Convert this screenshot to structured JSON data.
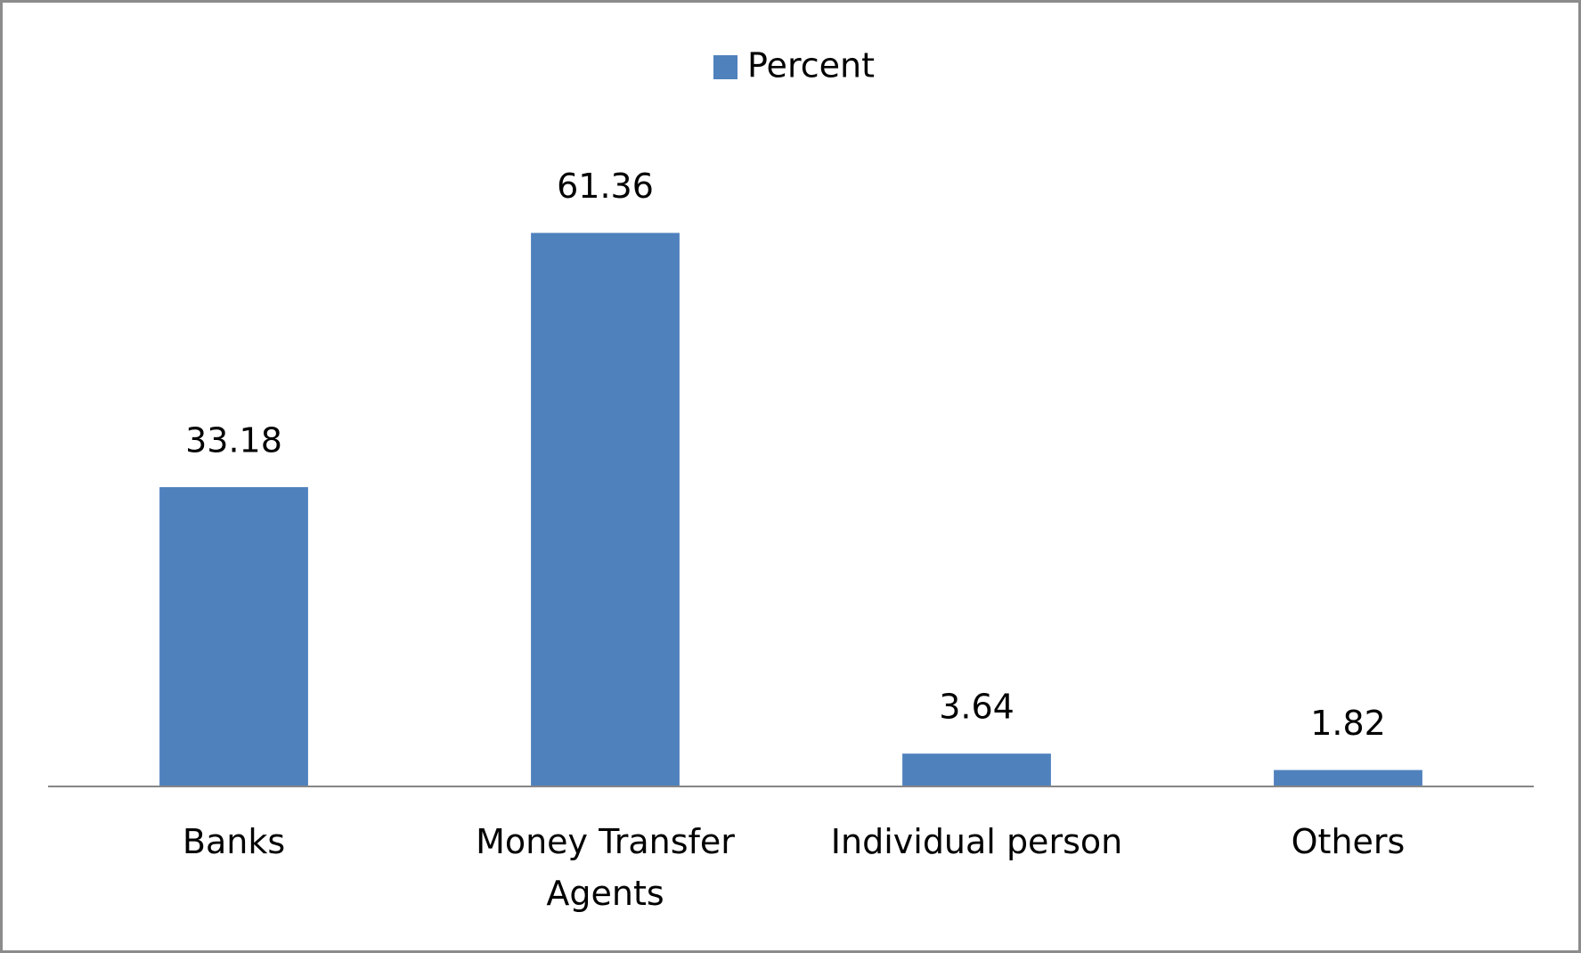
{
  "chart_data": {
    "type": "bar",
    "categories": [
      "Banks",
      "Money Transfer Agents",
      "Individual person",
      "Others"
    ],
    "series": [
      {
        "name": "Percent",
        "color": "#4f81bd",
        "values": [
          33.18,
          61.36,
          3.64,
          1.82
        ]
      }
    ],
    "ylim": [
      0,
      70
    ],
    "legend": "top"
  }
}
